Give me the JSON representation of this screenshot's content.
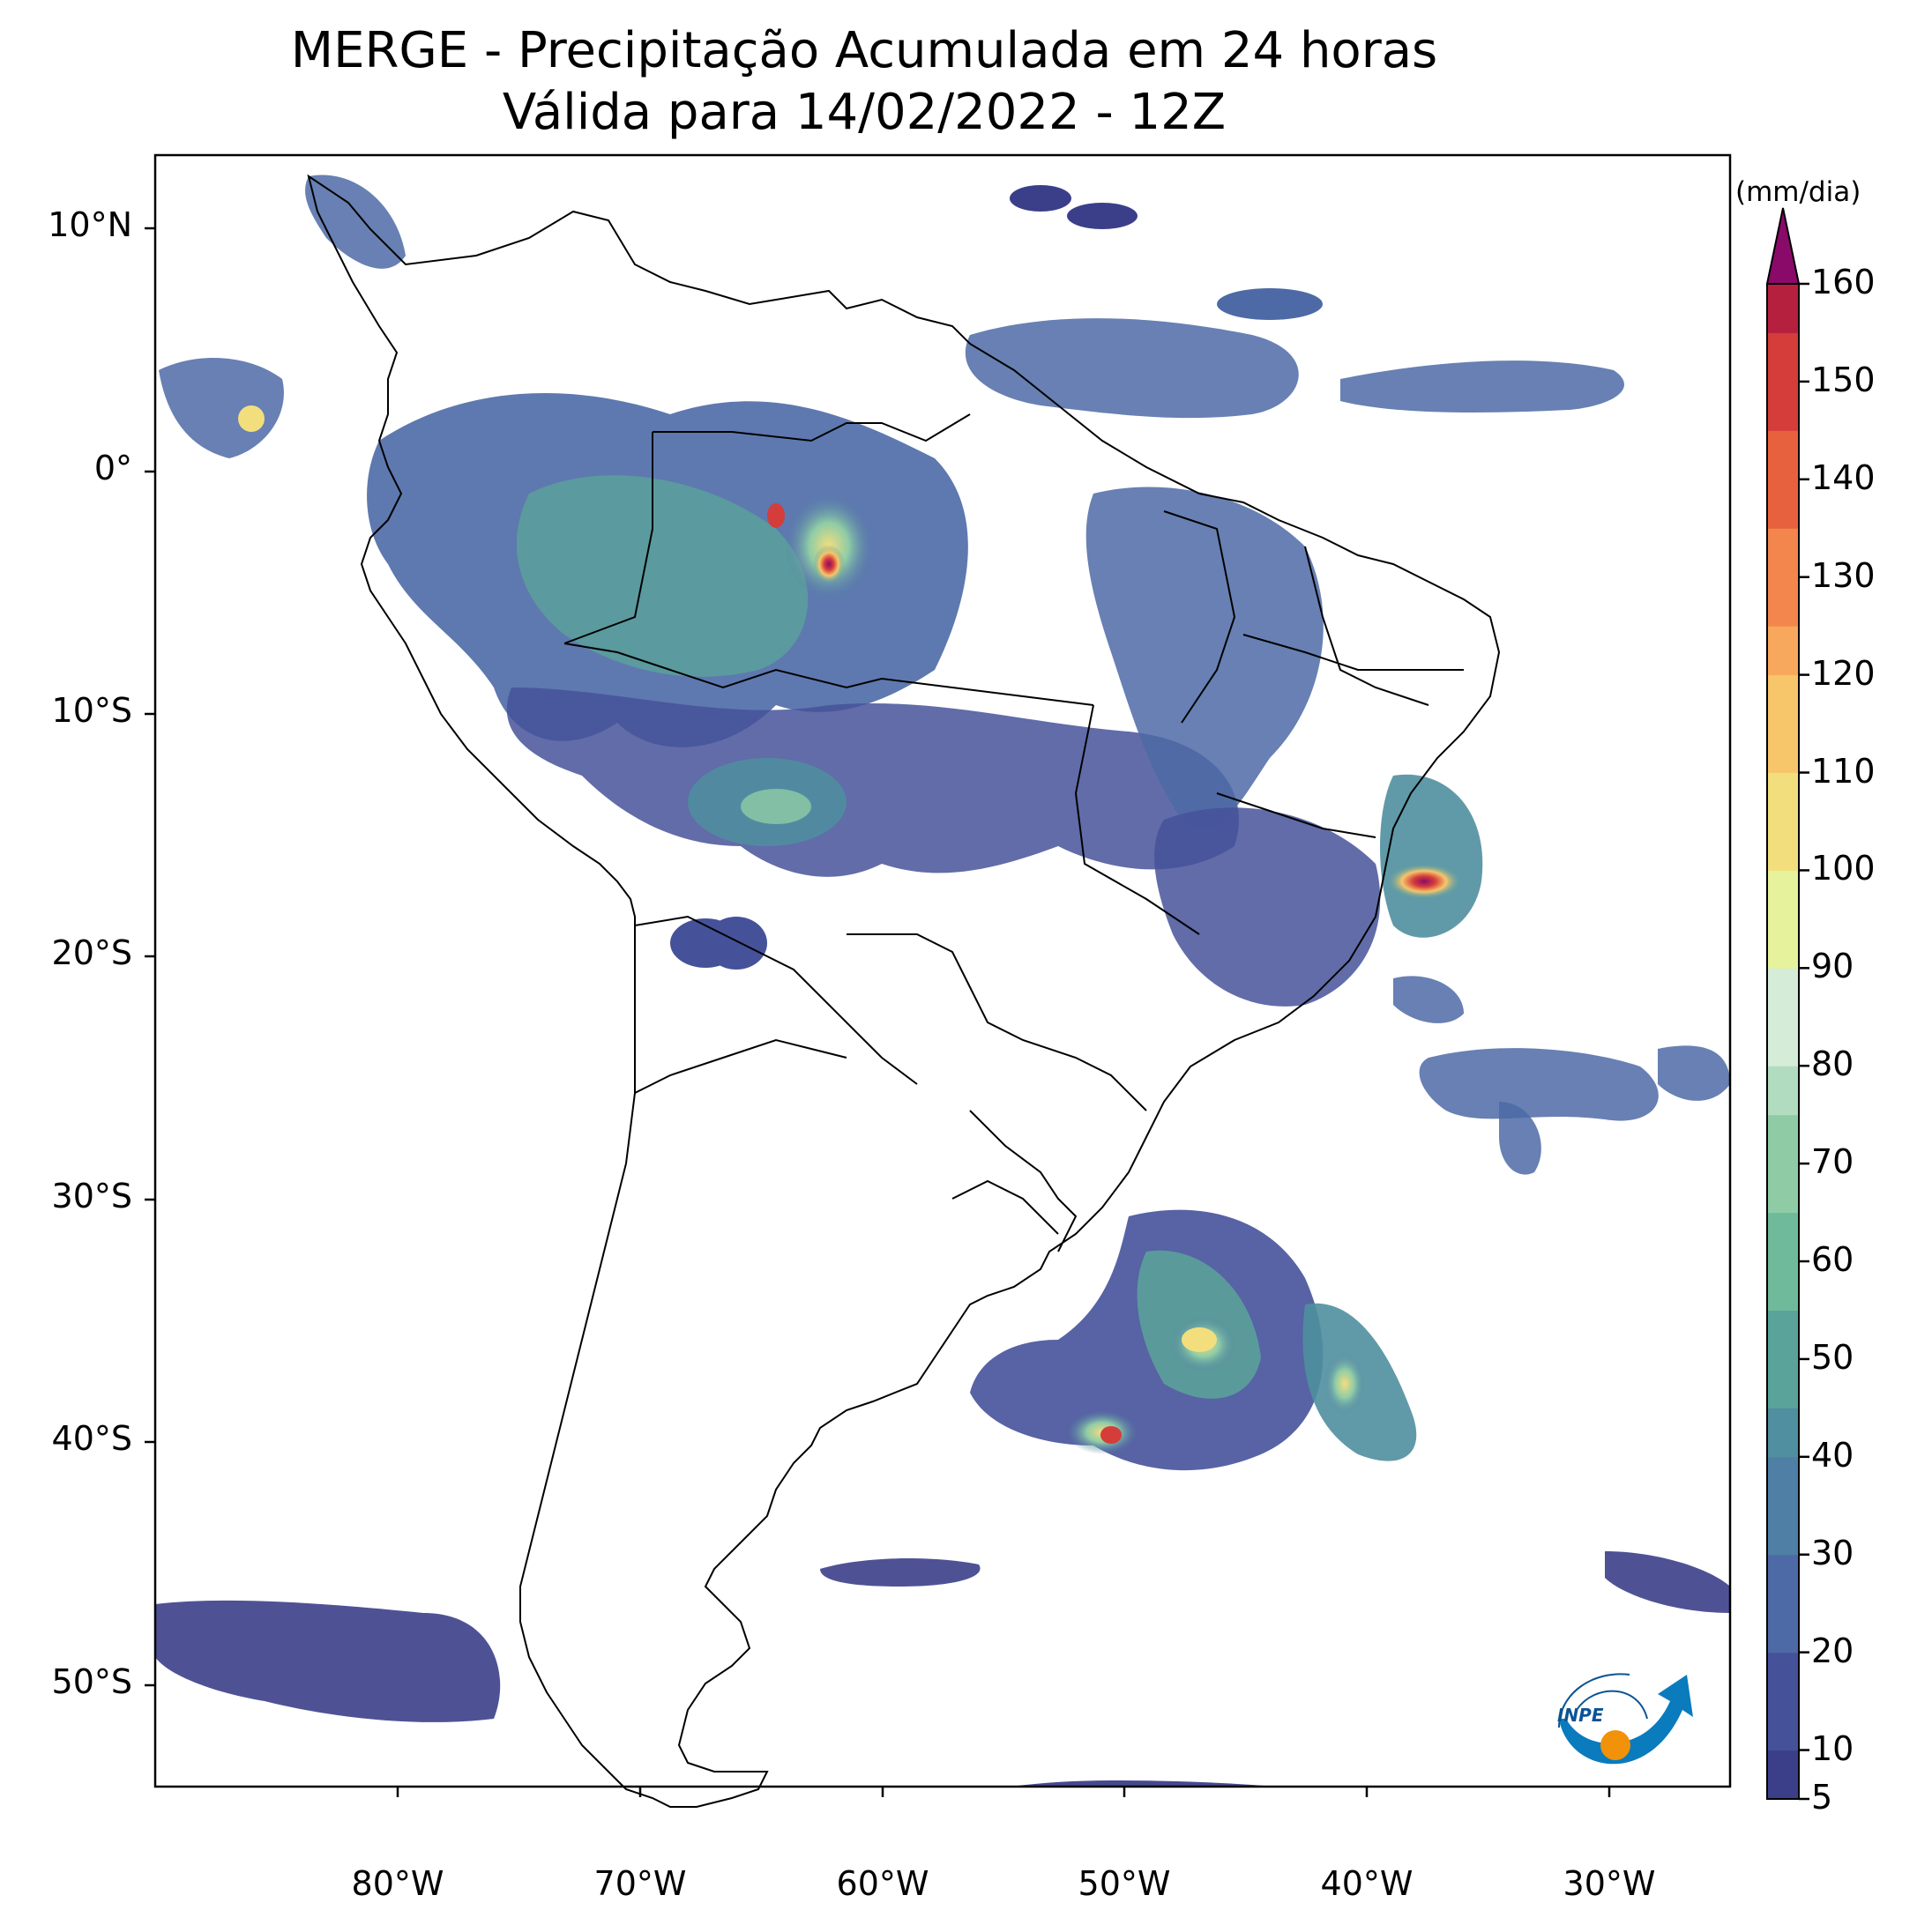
{
  "title": {
    "line1": "MERGE - Precipitação Acumulada em 24 horas",
    "line2": "Válida para 14/02/2022 - 12Z"
  },
  "map": {
    "lat_labels": [
      "10°N",
      "0°",
      "10°S",
      "20°S",
      "30°S",
      "40°S",
      "50°S"
    ],
    "lon_labels": [
      "80°W",
      "70°W",
      "60°W",
      "50°W",
      "40°W",
      "30°W"
    ],
    "lat_range": [
      -56,
      13
    ],
    "lon_range": [
      -90,
      -25
    ]
  },
  "colorbar": {
    "units": "(mm/dia)",
    "ticks": [
      "5",
      "10",
      "20",
      "30",
      "40",
      "50",
      "60",
      "70",
      "80",
      "90",
      "100",
      "110",
      "120",
      "130",
      "140",
      "150",
      "160"
    ],
    "range": [
      5,
      160
    ],
    "extend": "max",
    "colors": [
      "#3b3f8a",
      "#45529a",
      "#4d6aa6",
      "#4f7fa5",
      "#4f8f9f",
      "#5aa39a",
      "#6fba9a",
      "#8fcca6",
      "#b2dcc0",
      "#d5ecd9",
      "#e6f29c",
      "#f3de7e",
      "#f8c66a",
      "#f8a85c",
      "#f3864c",
      "#e8613f",
      "#d43d3a",
      "#b5203e",
      "#8a0a6a"
    ]
  },
  "logo": {
    "text": "INPE"
  }
}
